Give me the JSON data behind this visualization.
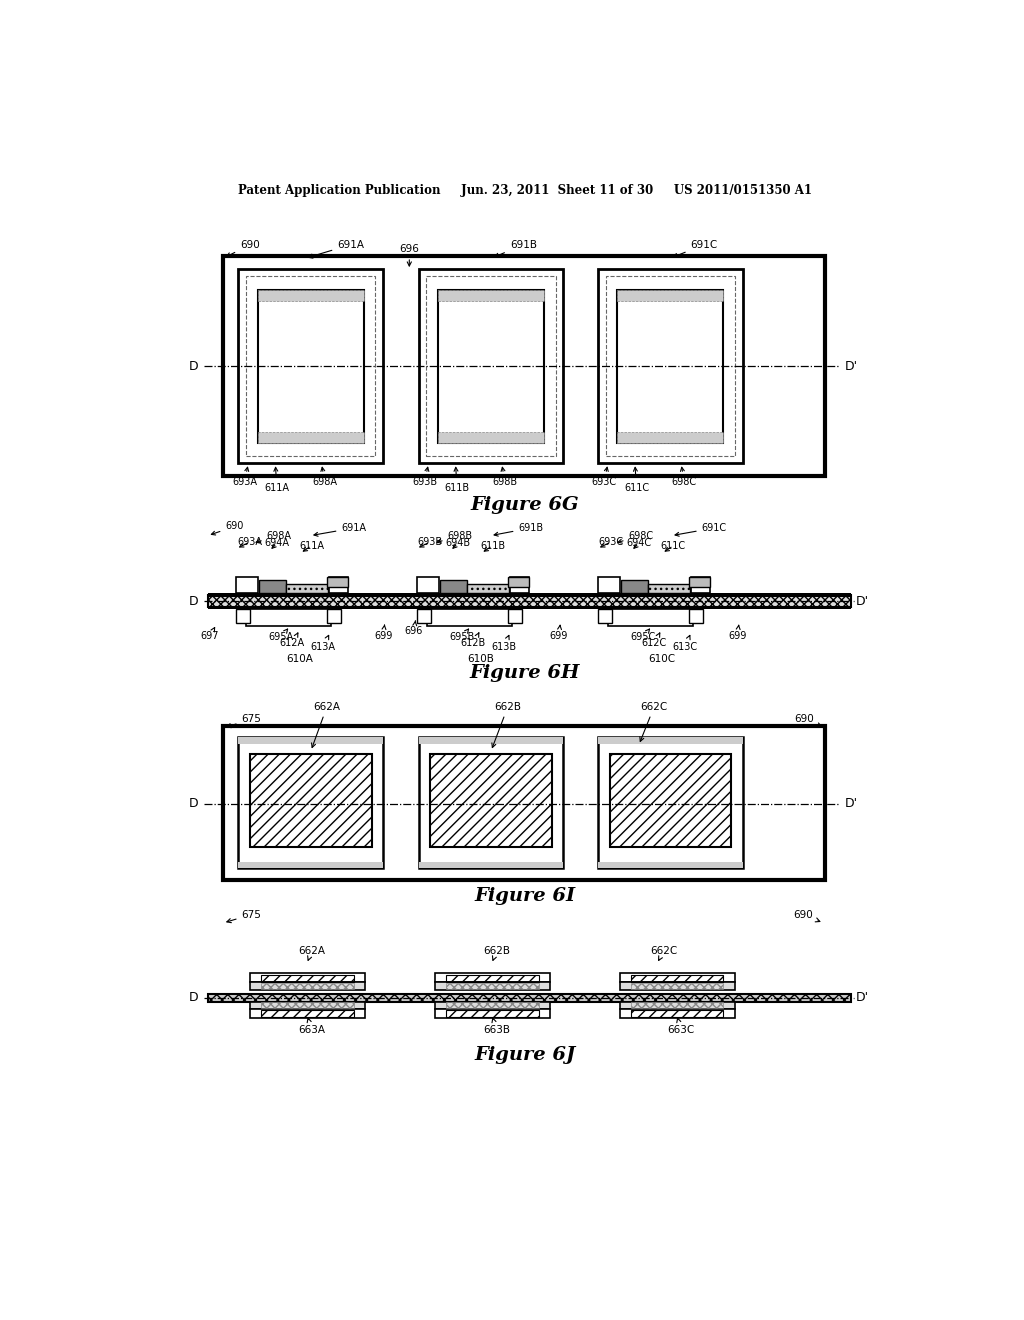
{
  "header": "Patent Application Publication     Jun. 23, 2011  Sheet 11 of 30     US 2011/0151350 A1",
  "bg_color": "#ffffff",
  "fig6G_title": "Figure 6G",
  "fig6H_title": "Figure 6H",
  "fig6I_title": "Figure 6I",
  "fig6J_title": "Figure 6J",
  "line_color": "#000000",
  "gray_color": "#aaaaaa",
  "light_gray": "#cccccc"
}
